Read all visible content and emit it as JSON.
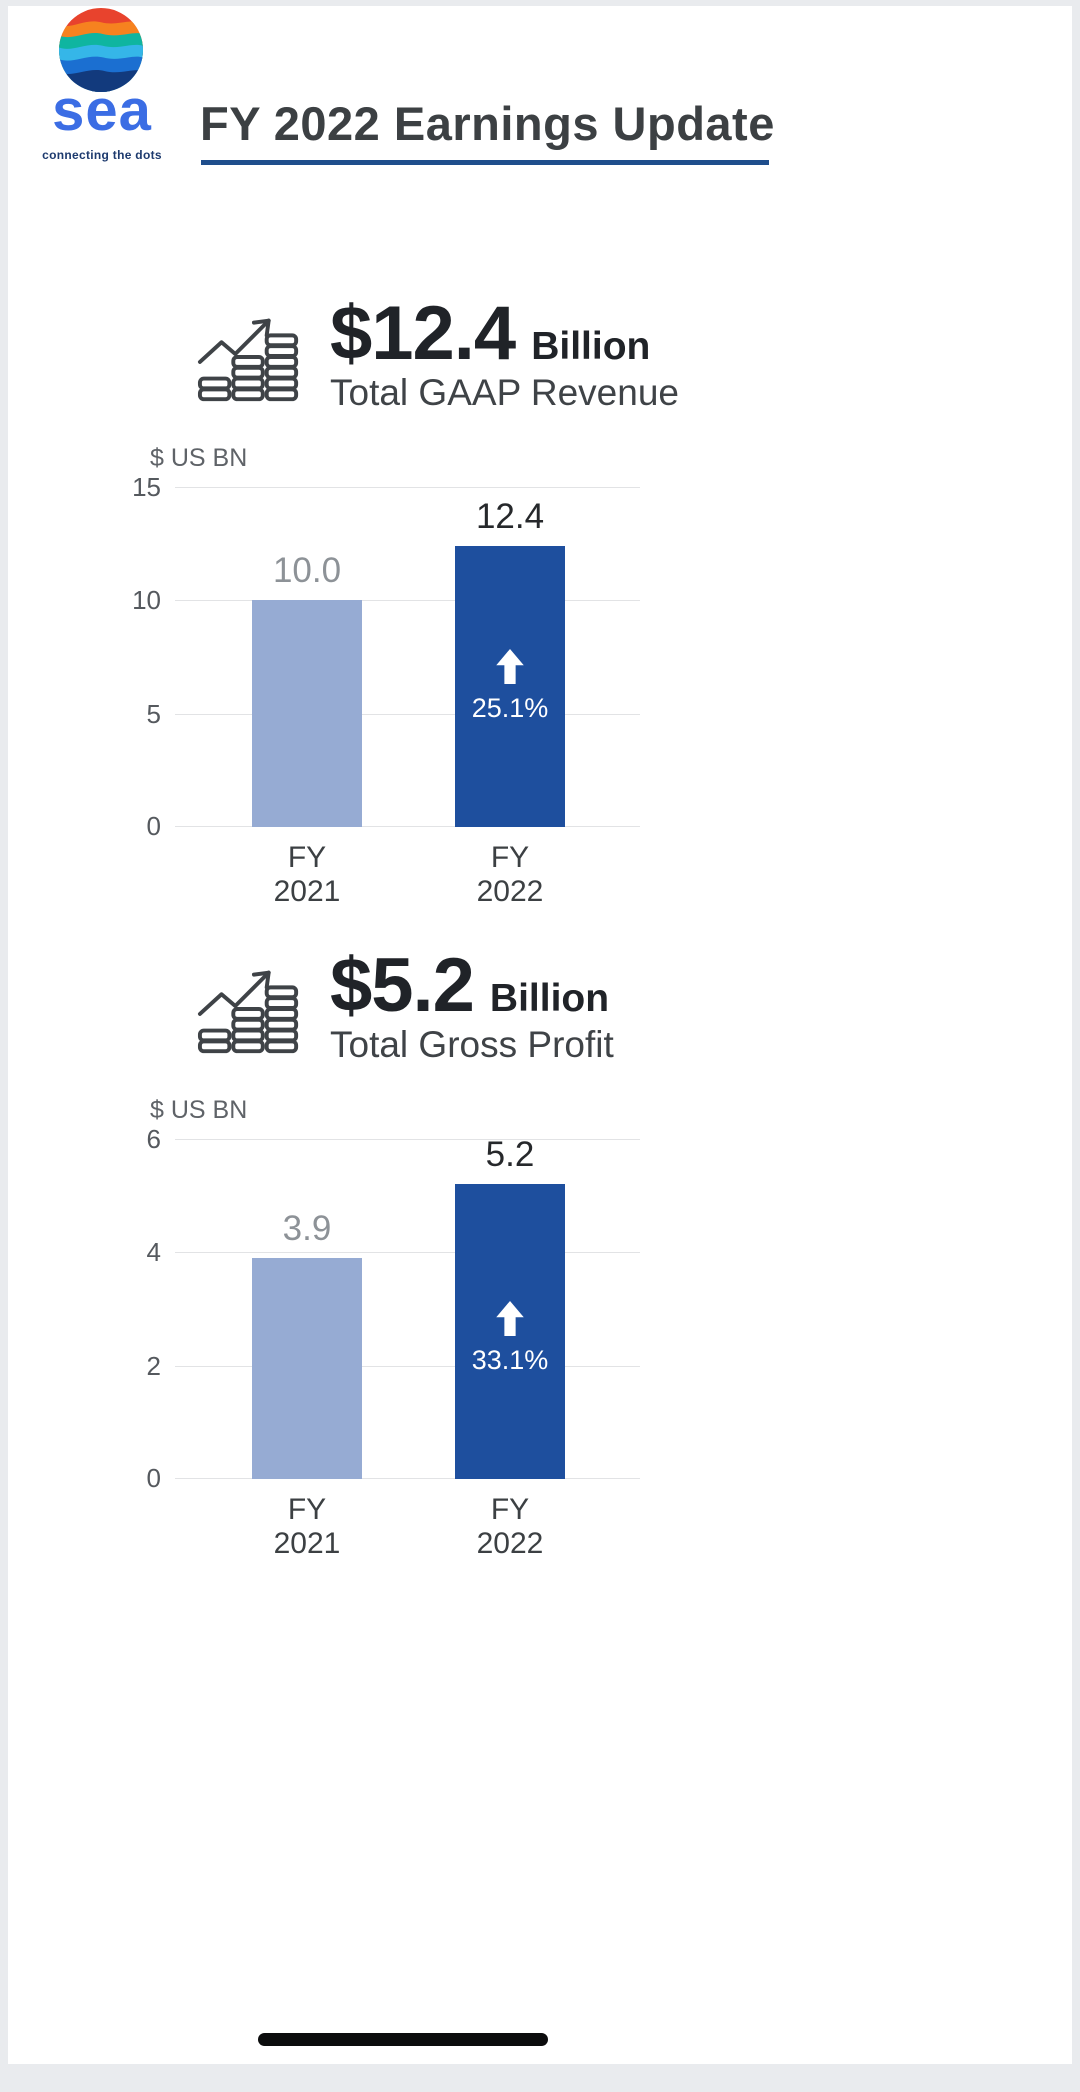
{
  "header": {
    "logo": {
      "wordmark": "sea",
      "tagline": "connecting the dots"
    },
    "title": "FY 2022 Earnings Update"
  },
  "colors": {
    "title_underline": "#1f4e8c",
    "wordmark_blue": "#3b6de4",
    "bar_fy2021": "#96abd3",
    "bar_fy2022": "#1e4f9e"
  },
  "chart_data": [
    {
      "type": "bar",
      "headline": {
        "value": "$12.4",
        "unit": "Billion",
        "label": "Total GAAP Revenue"
      },
      "ylabel": "$ US BN",
      "categories": [
        "FY 2021",
        "FY 2022"
      ],
      "values": [
        10.0,
        12.4
      ],
      "value_labels": [
        "10.0",
        "12.4"
      ],
      "growth": "25.1%",
      "ylim": [
        0,
        15
      ],
      "yticks": [
        0,
        5,
        10,
        15
      ],
      "bar_colors": [
        "#96abd3",
        "#1e4f9e"
      ],
      "grid": true,
      "legend": false
    },
    {
      "type": "bar",
      "headline": {
        "value": "$5.2",
        "unit": "Billion",
        "label": "Total Gross Profit"
      },
      "ylabel": "$ US BN",
      "categories": [
        "FY 2021",
        "FY 2022"
      ],
      "values": [
        3.9,
        5.2
      ],
      "value_labels": [
        "3.9",
        "5.2"
      ],
      "growth": "33.1%",
      "ylim": [
        0,
        6
      ],
      "yticks": [
        0,
        2,
        4,
        6
      ],
      "bar_colors": [
        "#96abd3",
        "#1e4f9e"
      ],
      "grid": true,
      "legend": false
    }
  ]
}
